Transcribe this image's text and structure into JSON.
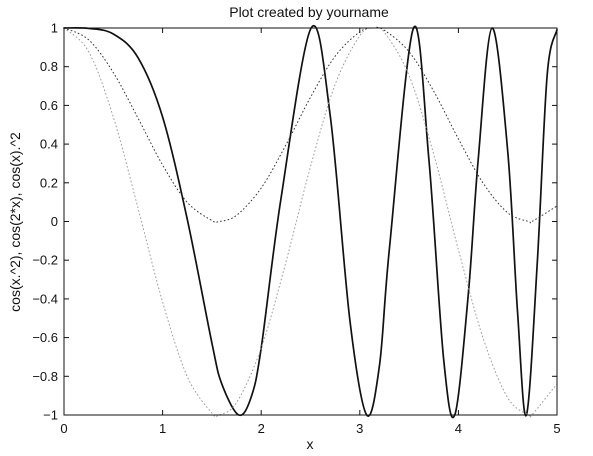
{
  "chart_data": {
    "type": "line",
    "title": "Plot created by yourname",
    "xlabel": "x",
    "ylabel": "cos(x.^2), cos(2*x), cos(x).^2",
    "xlim": [
      0,
      5
    ],
    "ylim": [
      -1,
      1
    ],
    "xticks": [
      0,
      1,
      2,
      3,
      4,
      5
    ],
    "yticks": [
      -1,
      -0.8,
      -0.6,
      -0.4,
      -0.2,
      0,
      0.2,
      0.4,
      0.6,
      0.8,
      1
    ],
    "xtick_labels": [
      "0",
      "1",
      "2",
      "3",
      "4",
      "5"
    ],
    "ytick_labels": [
      "−1",
      "−0.8",
      "−0.6",
      "−0.4",
      "−0.2",
      "0",
      "0.2",
      "0.4",
      "0.6",
      "0.8",
      "1"
    ],
    "grid": false,
    "series": [
      {
        "expression": "cos(x.^2)",
        "line_style": "solid",
        "color": "#111111",
        "x": [
          0,
          0.25,
          0.5,
          0.75,
          1,
          1.25,
          1.5,
          1.6,
          1.7725,
          1.9,
          2,
          2.2,
          2.5066,
          2.7,
          2.9,
          3.07,
          3.2,
          3.3,
          3.5449,
          3.7,
          3.85,
          3.9633,
          4.1,
          4.2,
          4.3416,
          4.5,
          4.6,
          4.6895,
          4.8,
          4.9,
          5
        ],
        "y": [
          1,
          0.998,
          0.969,
          0.847,
          0.54,
          0.012,
          -0.628,
          -0.839,
          -1,
          -0.905,
          -0.654,
          0.116,
          1,
          0.547,
          -0.513,
          -1,
          -0.742,
          -0.142,
          1,
          0.325,
          -0.71,
          -1,
          -0.378,
          0.315,
          1,
          0.364,
          -0.469,
          -1,
          -0.213,
          0.755,
          0.991
        ]
      },
      {
        "expression": "cos(2*x)",
        "line_style": "dotted",
        "color": "#999999",
        "x": [
          0,
          0.25,
          0.5,
          0.75,
          1,
          1.25,
          1.5,
          1.5708,
          1.75,
          2,
          2.25,
          2.5,
          2.75,
          3,
          3.1416,
          3.25,
          3.5,
          3.75,
          4,
          4.25,
          4.5,
          4.7124,
          4.75,
          5
        ],
        "y": [
          1,
          0.878,
          0.54,
          0.071,
          -0.416,
          -0.801,
          -0.99,
          -1,
          -0.936,
          -0.654,
          -0.211,
          0.284,
          0.709,
          0.96,
          1,
          0.977,
          0.754,
          0.347,
          -0.146,
          -0.602,
          -0.911,
          -1,
          -0.997,
          -0.839
        ]
      },
      {
        "expression": "cos(x).^2",
        "line_style": "dotted",
        "color": "#333333",
        "x": [
          0,
          0.25,
          0.5,
          0.75,
          1,
          1.25,
          1.5,
          1.5708,
          1.75,
          2,
          2.25,
          2.5,
          2.75,
          3,
          3.1416,
          3.25,
          3.5,
          3.75,
          4,
          4.25,
          4.5,
          4.7124,
          4.75,
          5
        ],
        "y": [
          1,
          0.939,
          0.77,
          0.535,
          0.292,
          0.099,
          0.005,
          0,
          0.032,
          0.173,
          0.395,
          0.642,
          0.854,
          0.98,
          1,
          0.988,
          0.877,
          0.673,
          0.427,
          0.199,
          0.045,
          0,
          0.001,
          0.08
        ]
      }
    ]
  }
}
